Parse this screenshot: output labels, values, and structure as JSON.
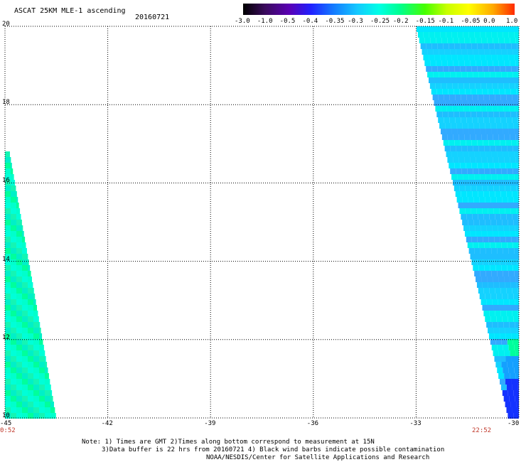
{
  "header": {
    "title": "ASCAT 25KM MLE-1 ascending",
    "date": "20160721"
  },
  "colorbar": {
    "labels": [
      "-3.0",
      "-1.0",
      "-0.5",
      "-0.4",
      "-0.35",
      "-0.3",
      "-0.25",
      "-0.2",
      "-0.15",
      "-0.1",
      "-0.05",
      "0.0",
      "1.0"
    ],
    "colors": [
      "#000000",
      "#3a0a5c",
      "#5a00b4",
      "#2020ff",
      "#1478ff",
      "#14c8ff",
      "#00ffe6",
      "#00ff8c",
      "#46ff00",
      "#c8ff00",
      "#ffff00",
      "#ffaa00",
      "#ff2a00"
    ]
  },
  "map": {
    "lon_ticks": [
      "-45",
      "-42",
      "-39",
      "-36",
      "-33",
      "-30"
    ],
    "lat_ticks": [
      "10",
      "12",
      "14",
      "16",
      "18",
      "20"
    ],
    "time_left": "0:52",
    "time_right": "22:52",
    "lon_range": [
      -45,
      -30
    ],
    "lat_range": [
      10,
      20
    ]
  },
  "notes": {
    "line1": "Note: 1) Times are GMT 2)Times along bottom correspond to measurement at 15N",
    "line2": "3)Data buffer is 22 hrs from 20160721 4) Black wind barbs indicate possible contamination",
    "line3": "NOAA/NESDIS/Center for Satellite Applications and Research"
  }
}
